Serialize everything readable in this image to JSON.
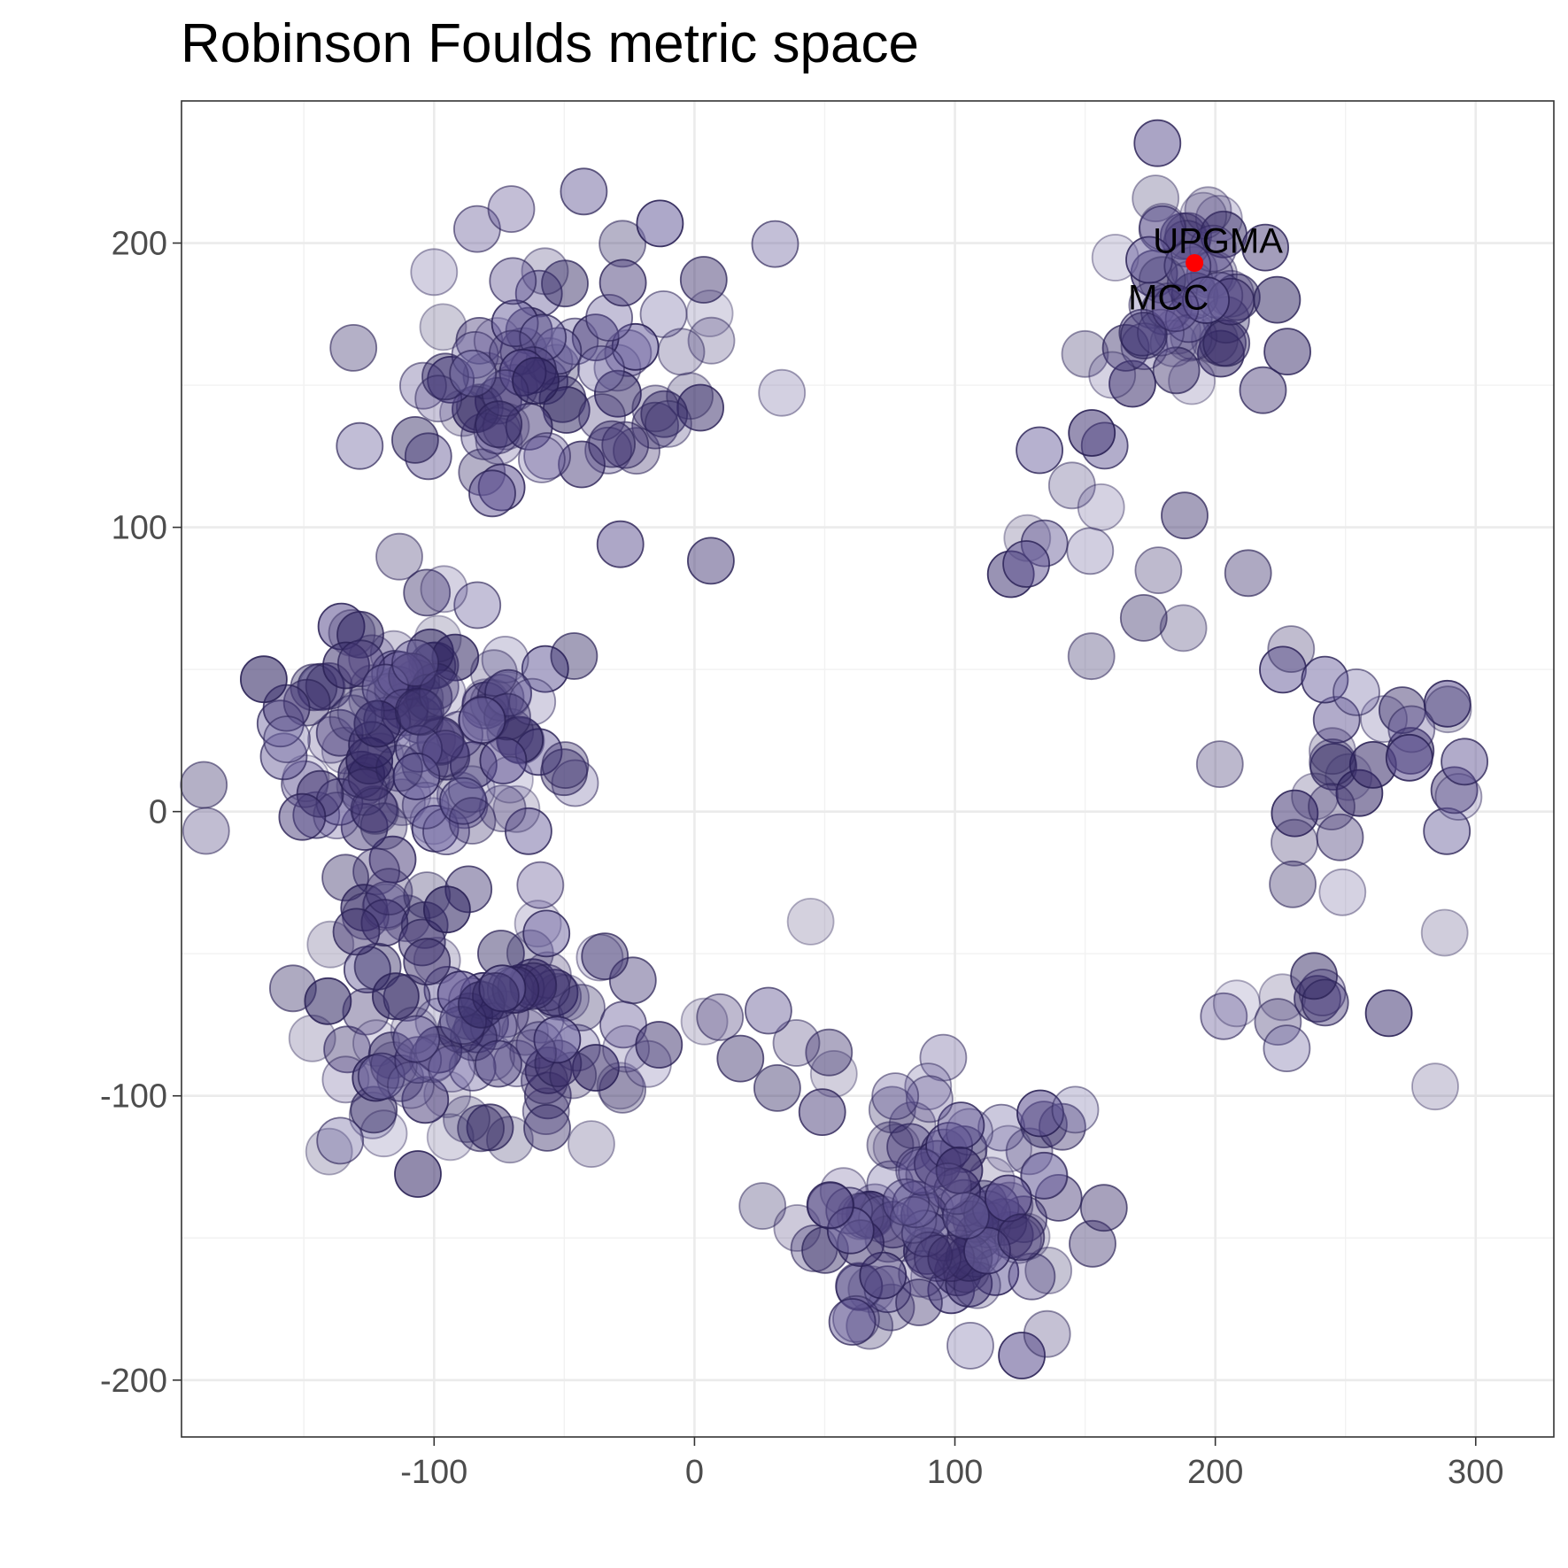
{
  "chart_data": {
    "type": "scatter",
    "title": "Robinson Foulds metric space",
    "xlabel": "",
    "ylabel": "",
    "xlim": [
      -197,
      330
    ],
    "ylim": [
      -220,
      250
    ],
    "xticks": [
      -100,
      0,
      100,
      200,
      300
    ],
    "yticks": [
      -200,
      -100,
      0,
      100,
      200
    ],
    "xtick_labels": [
      "-100",
      "0",
      "100",
      "200",
      "300"
    ],
    "ytick_labels": [
      "-200",
      "-100",
      "0",
      "100",
      "200"
    ],
    "grid": true,
    "point_color": "#3b2f6b",
    "highlight_color": "#ff0000",
    "highlight_point": {
      "x": 192,
      "y": 193
    },
    "annotations": [
      {
        "text": "UPGMA",
        "x": 201,
        "y": 201
      },
      {
        "text": "MCC",
        "x": 182,
        "y": 181
      }
    ],
    "clusters": [
      {
        "cx": -50,
        "cy": 150,
        "sx": 35,
        "sy": 25,
        "n": 85,
        "seed": 11
      },
      {
        "cx": -112,
        "cy": 22,
        "sx": 30,
        "sy": 22,
        "n": 130,
        "seed": 23
      },
      {
        "cx": -80,
        "cy": -75,
        "sx": 35,
        "sy": 22,
        "n": 110,
        "seed": 37
      },
      {
        "cx": 95,
        "cy": -140,
        "sx": 27,
        "sy": 22,
        "n": 110,
        "seed": 41
      },
      {
        "cx": 190,
        "cy": 180,
        "sx": 20,
        "sy": 22,
        "n": 55,
        "seed": 53
      },
      {
        "cx": 150,
        "cy": 85,
        "sx": 22,
        "sy": 22,
        "n": 15,
        "seed": 67
      },
      {
        "cx": 255,
        "cy": 25,
        "sx": 30,
        "sy": 25,
        "n": 32,
        "seed": 71
      },
      {
        "cx": 225,
        "cy": -65,
        "sx": 25,
        "sy": 15,
        "n": 12,
        "seed": 83
      },
      {
        "cx": 25,
        "cy": -90,
        "sx": 20,
        "sy": 25,
        "n": 10,
        "seed": 97
      }
    ]
  }
}
